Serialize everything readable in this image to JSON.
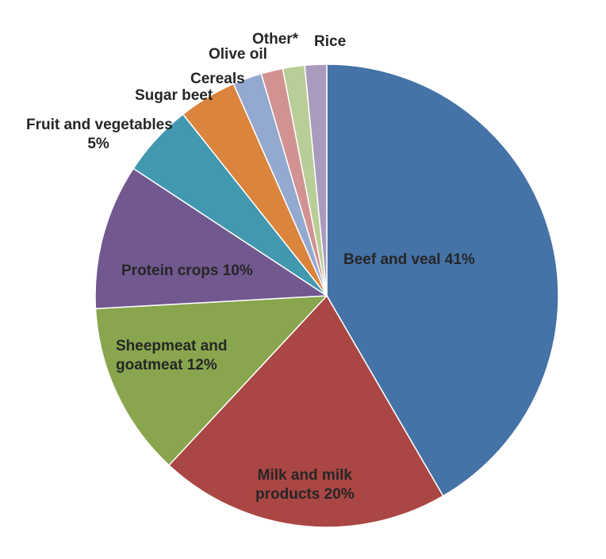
{
  "chart_data": {
    "type": "pie",
    "title": "",
    "start": "top, clockwise",
    "slices": [
      {
        "label": "Beef and veal",
        "display": "Beef and veal 41%",
        "value": 41,
        "color": "#4572a7"
      },
      {
        "label": "Milk and milk products",
        "display_lines": [
          "Milk and milk",
          "products 20%"
        ],
        "value": 20,
        "color": "#aa4643"
      },
      {
        "label": "Sheepmeat and goatmeat",
        "display_lines": [
          "Sheepmeat and",
          "goatmeat 12%"
        ],
        "value": 12,
        "color": "#89a54e"
      },
      {
        "label": "Protein crops",
        "display": "Protein crops 10%",
        "value": 10,
        "color": "#71588f"
      },
      {
        "label": "Fruit and vegetables",
        "display_lines": [
          "Fruit and vegetables",
          "5%"
        ],
        "value": 5,
        "color": "#4198af"
      },
      {
        "label": "Sugar beet",
        "display": "Sugar beet",
        "value": 4,
        "color": "#db843d"
      },
      {
        "label": "Cereals",
        "display": "Cereals",
        "value": 2,
        "color": "#93a9cf"
      },
      {
        "label": "Olive oil",
        "display": "Olive oil",
        "value": 1.5,
        "color": "#d19392"
      },
      {
        "label": "Other*",
        "display": "Other*",
        "value": 1.5,
        "color": "#b9cd96"
      },
      {
        "label": "Rice",
        "display": "Rice",
        "value": 1.5,
        "color": "#a99bbd"
      }
    ]
  }
}
